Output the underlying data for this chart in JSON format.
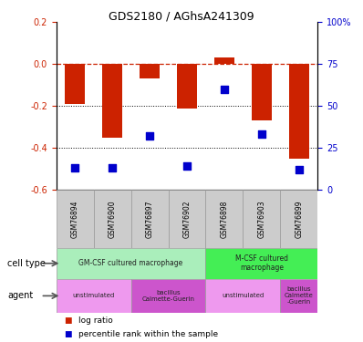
{
  "title": "GDS2180 / AGhsA241309",
  "samples": [
    "GSM76894",
    "GSM76900",
    "GSM76897",
    "GSM76902",
    "GSM76898",
    "GSM76903",
    "GSM76899"
  ],
  "log_ratio": [
    -0.19,
    -0.35,
    -0.07,
    -0.21,
    0.03,
    -0.27,
    -0.45
  ],
  "percentile": [
    13,
    13,
    32,
    14,
    60,
    33,
    12
  ],
  "ylim_left": [
    -0.6,
    0.2
  ],
  "ylim_right": [
    0,
    100
  ],
  "yticks_left": [
    0.2,
    0.0,
    -0.2,
    -0.4,
    -0.6
  ],
  "yticks_right": [
    100,
    75,
    50,
    25,
    0
  ],
  "bar_color": "#cc2200",
  "dot_color": "#0000cc",
  "dashed_color": "#cc2200",
  "cell_types": [
    {
      "label": "GM-CSF cultured macrophage",
      "start": 0,
      "end": 4,
      "color": "#aaeebb"
    },
    {
      "label": "M-CSF cultured\nmacrophage",
      "start": 4,
      "end": 7,
      "color": "#44ee55"
    }
  ],
  "agents": [
    {
      "label": "unstimulated",
      "start": 0,
      "end": 2,
      "color": "#ee99ee"
    },
    {
      "label": "bacillus\nCalmette-Guerin",
      "start": 2,
      "end": 4,
      "color": "#cc55cc"
    },
    {
      "label": "unstimulated",
      "start": 4,
      "end": 6,
      "color": "#ee99ee"
    },
    {
      "label": "bacillus\nCalmette\n-Guerin",
      "start": 6,
      "end": 7,
      "color": "#cc55cc"
    }
  ],
  "legend_items": [
    {
      "label": "log ratio",
      "color": "#cc2200"
    },
    {
      "label": "percentile rank within the sample",
      "color": "#0000cc"
    }
  ],
  "bar_width": 0.55,
  "dot_size": 28
}
